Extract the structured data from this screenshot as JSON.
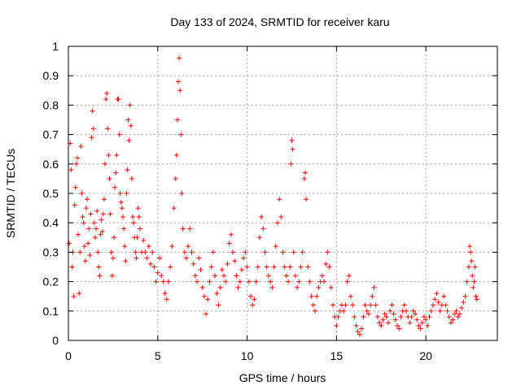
{
  "chart_data": {
    "type": "scatter",
    "title": "Day 133 of 2024, SRMTID for receiver karu",
    "xlabel": "GPS time / hours",
    "ylabel": "SRMTID / TECUs",
    "xlim": [
      0,
      24
    ],
    "ylim": [
      0,
      1
    ],
    "xticks": [
      0,
      5,
      10,
      15,
      20
    ],
    "xtick_labels": [
      "0",
      "5",
      "10",
      "15",
      "20"
    ],
    "yticks": [
      0,
      0.1,
      0.2,
      0.3,
      0.4,
      0.5,
      0.6,
      0.7,
      0.8,
      0.9,
      1
    ],
    "ytick_labels": [
      "0",
      "0.1",
      "0.2",
      "0.3",
      "0.4",
      "0.5",
      "0.6",
      "0.7",
      "0.8",
      "0.9",
      "1"
    ],
    "grid": true,
    "marker": "+",
    "color": "#ff0000",
    "series": [
      {
        "name": "SRMTID",
        "points": [
          [
            0.05,
            0.33
          ],
          [
            0.1,
            0.67
          ],
          [
            0.15,
            0.58
          ],
          [
            0.2,
            0.25
          ],
          [
            0.25,
            0.3
          ],
          [
            0.3,
            0.15
          ],
          [
            0.35,
            0.46
          ],
          [
            0.4,
            0.52
          ],
          [
            0.45,
            0.6
          ],
          [
            0.5,
            0.62
          ],
          [
            0.55,
            0.36
          ],
          [
            0.6,
            0.16
          ],
          [
            0.65,
            0.3
          ],
          [
            0.7,
            0.66
          ],
          [
            0.75,
            0.5
          ],
          [
            0.8,
            0.42
          ],
          [
            0.85,
            0.4
          ],
          [
            0.9,
            0.32
          ],
          [
            0.95,
            0.27
          ],
          [
            1.0,
            0.45
          ],
          [
            1.05,
            0.48
          ],
          [
            1.1,
            0.33
          ],
          [
            1.15,
            0.38
          ],
          [
            1.2,
            0.29
          ],
          [
            1.25,
            0.43
          ],
          [
            1.3,
            0.69
          ],
          [
            1.35,
            0.78
          ],
          [
            1.4,
            0.72
          ],
          [
            1.45,
            0.4
          ],
          [
            1.5,
            0.35
          ],
          [
            1.55,
            0.38
          ],
          [
            1.6,
            0.44
          ],
          [
            1.65,
            0.3
          ],
          [
            1.7,
            0.25
          ],
          [
            1.75,
            0.22
          ],
          [
            1.8,
            0.36
          ],
          [
            1.85,
            0.41
          ],
          [
            1.9,
            0.37
          ],
          [
            1.95,
            0.43
          ],
          [
            2.0,
            0.48
          ],
          [
            2.05,
            0.6
          ],
          [
            2.1,
            0.82
          ],
          [
            2.15,
            0.84
          ],
          [
            2.2,
            0.72
          ],
          [
            2.25,
            0.63
          ],
          [
            2.3,
            0.55
          ],
          [
            2.35,
            0.43
          ],
          [
            2.4,
            0.3
          ],
          [
            2.45,
            0.22
          ],
          [
            2.5,
            0.28
          ],
          [
            2.55,
            0.35
          ],
          [
            2.6,
            0.52
          ],
          [
            2.65,
            0.57
          ],
          [
            2.7,
            0.63
          ],
          [
            2.75,
            0.82
          ],
          [
            2.8,
            0.82
          ],
          [
            2.85,
            0.7
          ],
          [
            2.9,
            0.5
          ],
          [
            2.95,
            0.47
          ],
          [
            3.0,
            0.45
          ],
          [
            3.05,
            0.42
          ],
          [
            3.1,
            0.38
          ],
          [
            3.15,
            0.32
          ],
          [
            3.2,
            0.27
          ],
          [
            3.25,
            0.5
          ],
          [
            3.3,
            0.58
          ],
          [
            3.35,
            0.75
          ],
          [
            3.4,
            0.68
          ],
          [
            3.45,
            0.8
          ],
          [
            3.5,
            0.73
          ],
          [
            3.55,
            0.55
          ],
          [
            3.6,
            0.42
          ],
          [
            3.65,
            0.4
          ],
          [
            3.7,
            0.35
          ],
          [
            3.75,
            0.3
          ],
          [
            3.8,
            0.28
          ],
          [
            3.85,
            0.35
          ],
          [
            3.9,
            0.45
          ],
          [
            3.95,
            0.42
          ],
          [
            4.0,
            0.38
          ],
          [
            4.1,
            0.3
          ],
          [
            4.2,
            0.34
          ],
          [
            4.3,
            0.3
          ],
          [
            4.4,
            0.28
          ],
          [
            4.5,
            0.32
          ],
          [
            4.6,
            0.26
          ],
          [
            4.7,
            0.3
          ],
          [
            4.8,
            0.25
          ],
          [
            4.9,
            0.2
          ],
          [
            5.0,
            0.23
          ],
          [
            5.1,
            0.28
          ],
          [
            5.2,
            0.22
          ],
          [
            5.3,
            0.2
          ],
          [
            5.4,
            0.16
          ],
          [
            5.5,
            0.14
          ],
          [
            5.6,
            0.2
          ],
          [
            5.7,
            0.25
          ],
          [
            5.8,
            0.32
          ],
          [
            5.9,
            0.45
          ],
          [
            6.0,
            0.55
          ],
          [
            6.05,
            0.63
          ],
          [
            6.1,
            0.75
          ],
          [
            6.15,
            0.88
          ],
          [
            6.2,
            0.96
          ],
          [
            6.25,
            0.85
          ],
          [
            6.3,
            0.7
          ],
          [
            6.35,
            0.5
          ],
          [
            6.4,
            0.38
          ],
          [
            6.5,
            0.3
          ],
          [
            6.6,
            0.28
          ],
          [
            6.7,
            0.32
          ],
          [
            6.8,
            0.38
          ],
          [
            6.9,
            0.3
          ],
          [
            7.0,
            0.26
          ],
          [
            7.1,
            0.22
          ],
          [
            7.2,
            0.2
          ],
          [
            7.3,
            0.28
          ],
          [
            7.4,
            0.24
          ],
          [
            7.5,
            0.18
          ],
          [
            7.6,
            0.15
          ],
          [
            7.7,
            0.09
          ],
          [
            7.8,
            0.14
          ],
          [
            7.9,
            0.2
          ],
          [
            8.0,
            0.25
          ],
          [
            8.1,
            0.3
          ],
          [
            8.2,
            0.22
          ],
          [
            8.3,
            0.16
          ],
          [
            8.4,
            0.12
          ],
          [
            8.5,
            0.18
          ],
          [
            8.6,
            0.24
          ],
          [
            8.7,
            0.22
          ],
          [
            8.8,
            0.2
          ],
          [
            8.9,
            0.26
          ],
          [
            9.0,
            0.33
          ],
          [
            9.1,
            0.36
          ],
          [
            9.2,
            0.3
          ],
          [
            9.3,
            0.27
          ],
          [
            9.4,
            0.22
          ],
          [
            9.5,
            0.18
          ],
          [
            9.6,
            0.2
          ],
          [
            9.7,
            0.24
          ],
          [
            9.8,
            0.28
          ],
          [
            9.9,
            0.3
          ],
          [
            10.0,
            0.25
          ],
          [
            10.1,
            0.2
          ],
          [
            10.2,
            0.15
          ],
          [
            10.3,
            0.12
          ],
          [
            10.4,
            0.14
          ],
          [
            10.5,
            0.2
          ],
          [
            10.6,
            0.25
          ],
          [
            10.7,
            0.35
          ],
          [
            10.8,
            0.42
          ],
          [
            10.9,
            0.38
          ],
          [
            11.0,
            0.3
          ],
          [
            11.1,
            0.25
          ],
          [
            11.2,
            0.22
          ],
          [
            11.3,
            0.2
          ],
          [
            11.4,
            0.18
          ],
          [
            11.5,
            0.25
          ],
          [
            11.6,
            0.32
          ],
          [
            11.7,
            0.4
          ],
          [
            11.8,
            0.48
          ],
          [
            11.9,
            0.42
          ],
          [
            12.0,
            0.3
          ],
          [
            12.1,
            0.25
          ],
          [
            12.2,
            0.22
          ],
          [
            12.3,
            0.2
          ],
          [
            12.4,
            0.25
          ],
          [
            12.45,
            0.6
          ],
          [
            12.5,
            0.68
          ],
          [
            12.55,
            0.65
          ],
          [
            12.6,
            0.3
          ],
          [
            12.7,
            0.22
          ],
          [
            12.8,
            0.18
          ],
          [
            12.9,
            0.2
          ],
          [
            13.0,
            0.25
          ],
          [
            13.1,
            0.3
          ],
          [
            13.2,
            0.55
          ],
          [
            13.25,
            0.57
          ],
          [
            13.3,
            0.48
          ],
          [
            13.4,
            0.25
          ],
          [
            13.5,
            0.2
          ],
          [
            13.6,
            0.15
          ],
          [
            13.7,
            0.12
          ],
          [
            13.8,
            0.1
          ],
          [
            13.9,
            0.15
          ],
          [
            14.0,
            0.18
          ],
          [
            14.1,
            0.2
          ],
          [
            14.2,
            0.22
          ],
          [
            14.3,
            0.2
          ],
          [
            14.4,
            0.26
          ],
          [
            14.5,
            0.3
          ],
          [
            14.6,
            0.25
          ],
          [
            14.7,
            0.18
          ],
          [
            14.8,
            0.12
          ],
          [
            14.9,
            0.08
          ],
          [
            15.0,
            0.05
          ],
          [
            15.1,
            0.08
          ],
          [
            15.2,
            0.1
          ],
          [
            15.3,
            0.12
          ],
          [
            15.4,
            0.1
          ],
          [
            15.5,
            0.12
          ],
          [
            15.6,
            0.2
          ],
          [
            15.7,
            0.22
          ],
          [
            15.8,
            0.15
          ],
          [
            15.9,
            0.12
          ],
          [
            16.0,
            0.08
          ],
          [
            16.1,
            0.05
          ],
          [
            16.2,
            0.03
          ],
          [
            16.3,
            0.02
          ],
          [
            16.4,
            0.04
          ],
          [
            16.5,
            0.08
          ],
          [
            16.6,
            0.12
          ],
          [
            16.7,
            0.1
          ],
          [
            16.8,
            0.09
          ],
          [
            16.9,
            0.12
          ],
          [
            17.0,
            0.15
          ],
          [
            17.1,
            0.18
          ],
          [
            17.2,
            0.12
          ],
          [
            17.3,
            0.08
          ],
          [
            17.4,
            0.06
          ],
          [
            17.5,
            0.05
          ],
          [
            17.6,
            0.07
          ],
          [
            17.7,
            0.09
          ],
          [
            17.8,
            0.08
          ],
          [
            17.9,
            0.06
          ],
          [
            18.0,
            0.1
          ],
          [
            18.1,
            0.12
          ],
          [
            18.2,
            0.09
          ],
          [
            18.3,
            0.07
          ],
          [
            18.4,
            0.05
          ],
          [
            18.5,
            0.04
          ],
          [
            18.6,
            0.08
          ],
          [
            18.7,
            0.1
          ],
          [
            18.8,
            0.12
          ],
          [
            18.9,
            0.1
          ],
          [
            19.0,
            0.08
          ],
          [
            19.1,
            0.06
          ],
          [
            19.2,
            0.08
          ],
          [
            19.3,
            0.1
          ],
          [
            19.4,
            0.09
          ],
          [
            19.5,
            0.07
          ],
          [
            19.6,
            0.05
          ],
          [
            19.7,
            0.04
          ],
          [
            19.8,
            0.06
          ],
          [
            19.9,
            0.08
          ],
          [
            20.0,
            0.07
          ],
          [
            20.1,
            0.05
          ],
          [
            20.2,
            0.08
          ],
          [
            20.3,
            0.1
          ],
          [
            20.4,
            0.12
          ],
          [
            20.5,
            0.14
          ],
          [
            20.6,
            0.16
          ],
          [
            20.7,
            0.13
          ],
          [
            20.8,
            0.1
          ],
          [
            20.9,
            0.12
          ],
          [
            21.0,
            0.15
          ],
          [
            21.1,
            0.12
          ],
          [
            21.2,
            0.1
          ],
          [
            21.3,
            0.08
          ],
          [
            21.4,
            0.06
          ],
          [
            21.5,
            0.07
          ],
          [
            21.6,
            0.09
          ],
          [
            21.7,
            0.1
          ],
          [
            21.8,
            0.08
          ],
          [
            21.9,
            0.09
          ],
          [
            22.0,
            0.11
          ],
          [
            22.1,
            0.13
          ],
          [
            22.2,
            0.15
          ],
          [
            22.3,
            0.2
          ],
          [
            22.4,
            0.25
          ],
          [
            22.45,
            0.32
          ],
          [
            22.5,
            0.3
          ],
          [
            22.55,
            0.27
          ],
          [
            22.6,
            0.22
          ],
          [
            22.65,
            0.18
          ],
          [
            22.7,
            0.2
          ],
          [
            22.75,
            0.25
          ],
          [
            22.8,
            0.15
          ],
          [
            22.85,
            0.14
          ]
        ]
      }
    ]
  }
}
